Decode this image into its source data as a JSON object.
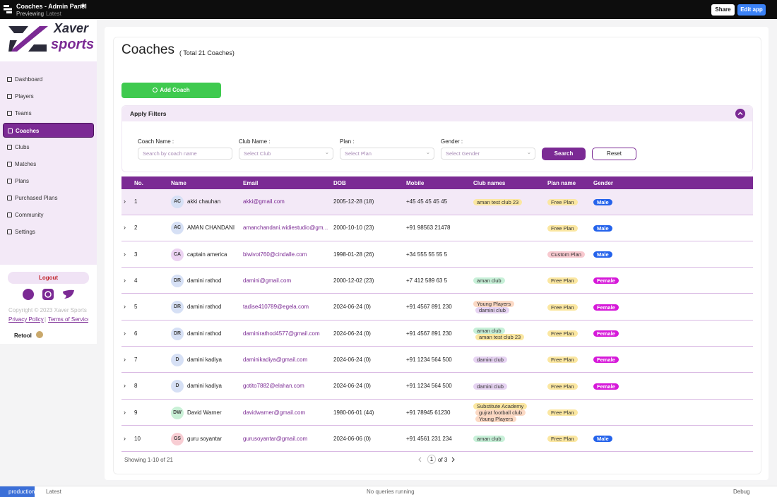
{
  "topbar": {
    "title": "Coaches - Admin Panel",
    "mode": "Previewing",
    "version": "Latest",
    "share": "Share",
    "edit": "Edit app"
  },
  "sidebar": {
    "logo": {
      "word1": "Xaver",
      "word2": "sports"
    },
    "nav": [
      "Dashboard",
      "Players",
      "Teams",
      "Coaches",
      "Clubs",
      "Matches",
      "Plans",
      "Purchased Plans",
      "Community",
      "Settings"
    ],
    "active": 3,
    "logout": "Logout",
    "copyright": "Copyright © 2023 Xaver Sports",
    "privacy": "Privacy Policy",
    "separator": "|",
    "terms": "Terms of Service",
    "retool": "Retool"
  },
  "header": {
    "title": "Coaches",
    "subtitle": "( Total 21 Coaches)",
    "add_button": "Add Coach"
  },
  "filters": {
    "title": "Apply Filters",
    "fields": [
      {
        "label": "Coach Name :",
        "placeholder": "Search by coach name"
      },
      {
        "label": "Club Name :",
        "placeholder": "Select Club"
      },
      {
        "label": "Plan :",
        "placeholder": "Select Plan"
      },
      {
        "label": "Gender :",
        "placeholder": "Select Gender"
      }
    ],
    "search": "Search",
    "reset": "Reset"
  },
  "table": {
    "columns": [
      "No.",
      "Name",
      "Email",
      "DOB",
      "Mobile",
      "Club names",
      "Plan name",
      "Gender"
    ],
    "rows": [
      {
        "no": "1",
        "initials": "AC",
        "avatar_color": "#d6e0f5",
        "name": "akki chauhan",
        "email": "akki@gmail.com",
        "dob": "2005-12-28 (18)",
        "mobile": "+45 45 45 45 45",
        "clubs": [
          {
            "name": "aman test club 23",
            "color": "#fbe7a1"
          }
        ],
        "plan": "Free Plan",
        "plan_color": "#fbe7a1",
        "gender": "Male",
        "gender_color": "#2563eb"
      },
      {
        "no": "2",
        "initials": "AC",
        "avatar_color": "#d6e0f5",
        "name": "AMAN CHANDANI",
        "email": "amanchandani.widiestudio@gm...",
        "dob": "2000-10-10 (23)",
        "mobile": "+91 98563 21478",
        "clubs": [],
        "plan": "Free Plan",
        "plan_color": "#fbe7a1",
        "gender": "Male",
        "gender_color": "#2563eb"
      },
      {
        "no": "3",
        "initials": "CA",
        "avatar_color": "#ecd3f2",
        "name": "captain america",
        "email": "biwivot760@cindalle.com",
        "dob": "1998-01-28 (26)",
        "mobile": "+34 555 55 55 5",
        "clubs": [],
        "plan": "Custom Plan",
        "plan_color": "#f8c9cf",
        "gender": "Male",
        "gender_color": "#2563eb"
      },
      {
        "no": "4",
        "initials": "DR",
        "avatar_color": "#d6e0f5",
        "name": "damini rathod",
        "email": "damini@gmail.com",
        "dob": "2000-12-02 (23)",
        "mobile": "+7 412 589 63 5",
        "clubs": [
          {
            "name": "aman club",
            "color": "#c7f0d8"
          }
        ],
        "plan": "Free Plan",
        "plan_color": "#fbe7a1",
        "gender": "Female",
        "gender_color": "#d61ad9"
      },
      {
        "no": "5",
        "initials": "DR",
        "avatar_color": "#d6e0f5",
        "name": "damini rathod",
        "email": "tadise410789@egela.com",
        "dob": "2024-06-24 (0)",
        "mobile": "+91 4567 891 230",
        "clubs": [
          {
            "name": "Young Players",
            "color": "#fcd9c4"
          },
          {
            "name": "damini club",
            "color": "#e6d3f2"
          }
        ],
        "plan": "Free Plan",
        "plan_color": "#fbe7a1",
        "gender": "Female",
        "gender_color": "#d61ad9"
      },
      {
        "no": "6",
        "initials": "DR",
        "avatar_color": "#d6e0f5",
        "name": "damini rathod",
        "email": "daminirathod4577@gmail.com",
        "dob": "2024-06-24 (0)",
        "mobile": "+91 4567 891 230",
        "clubs": [
          {
            "name": "aman club",
            "color": "#c7f0d8"
          },
          {
            "name": "aman test club 23",
            "color": "#fbe7a1"
          }
        ],
        "plan": "Free Plan",
        "plan_color": "#fbe7a1",
        "gender": "Female",
        "gender_color": "#d61ad9"
      },
      {
        "no": "7",
        "initials": "D",
        "avatar_color": "#d6e0f5",
        "name": "damini kadiya",
        "email": "daminikadiya@gmail.com",
        "dob": "2024-06-24 (0)",
        "mobile": "+91 1234 564 500",
        "clubs": [
          {
            "name": "damini club",
            "color": "#e6d3f2"
          }
        ],
        "plan": "Free Plan",
        "plan_color": "#fbe7a1",
        "gender": "Female",
        "gender_color": "#d61ad9"
      },
      {
        "no": "8",
        "initials": "D",
        "avatar_color": "#d6e0f5",
        "name": "damini kadiya",
        "email": "gotito7882@elahan.com",
        "dob": "2024-06-24 (0)",
        "mobile": "+91 1234 564 500",
        "clubs": [
          {
            "name": "damini club",
            "color": "#e6d3f2"
          }
        ],
        "plan": "Free Plan",
        "plan_color": "#fbe7a1",
        "gender": "Female",
        "gender_color": "#d61ad9"
      },
      {
        "no": "9",
        "initials": "DW",
        "avatar_color": "#c9f0d6",
        "name": "David Warner",
        "email": "davidwarner@gmail.com",
        "dob": "1980-06-01 (44)",
        "mobile": "+91 78945 61230",
        "clubs": [
          {
            "name": "Substitute Academy",
            "color": "#fbe7a1"
          },
          {
            "name": "gujrat football club",
            "color": "#fcd9c4"
          },
          {
            "name": "Young Players",
            "color": "#fcd9c4"
          }
        ],
        "plan": "Free Plan",
        "plan_color": "#fbe7a1",
        "gender": null,
        "gender_color": null
      },
      {
        "no": "10",
        "initials": "GS",
        "avatar_color": "#f8cdd3",
        "name": "guru soyantar",
        "email": "gurusoyantar@gmail.com",
        "dob": "2024-06-06 (0)",
        "mobile": "+91 4561 231 234",
        "clubs": [
          {
            "name": "aman club",
            "color": "#c7f0d8"
          }
        ],
        "plan": "Free Plan",
        "plan_color": "#fbe7a1",
        "gender": "Male",
        "gender_color": "#2563eb"
      }
    ]
  },
  "pagination": {
    "summary": "Showing 1-10 of 21",
    "page": "1",
    "of": "of 3"
  },
  "statusbar": {
    "env": "production",
    "version": "Latest",
    "queries": "No queries running",
    "debug": "Debug"
  }
}
